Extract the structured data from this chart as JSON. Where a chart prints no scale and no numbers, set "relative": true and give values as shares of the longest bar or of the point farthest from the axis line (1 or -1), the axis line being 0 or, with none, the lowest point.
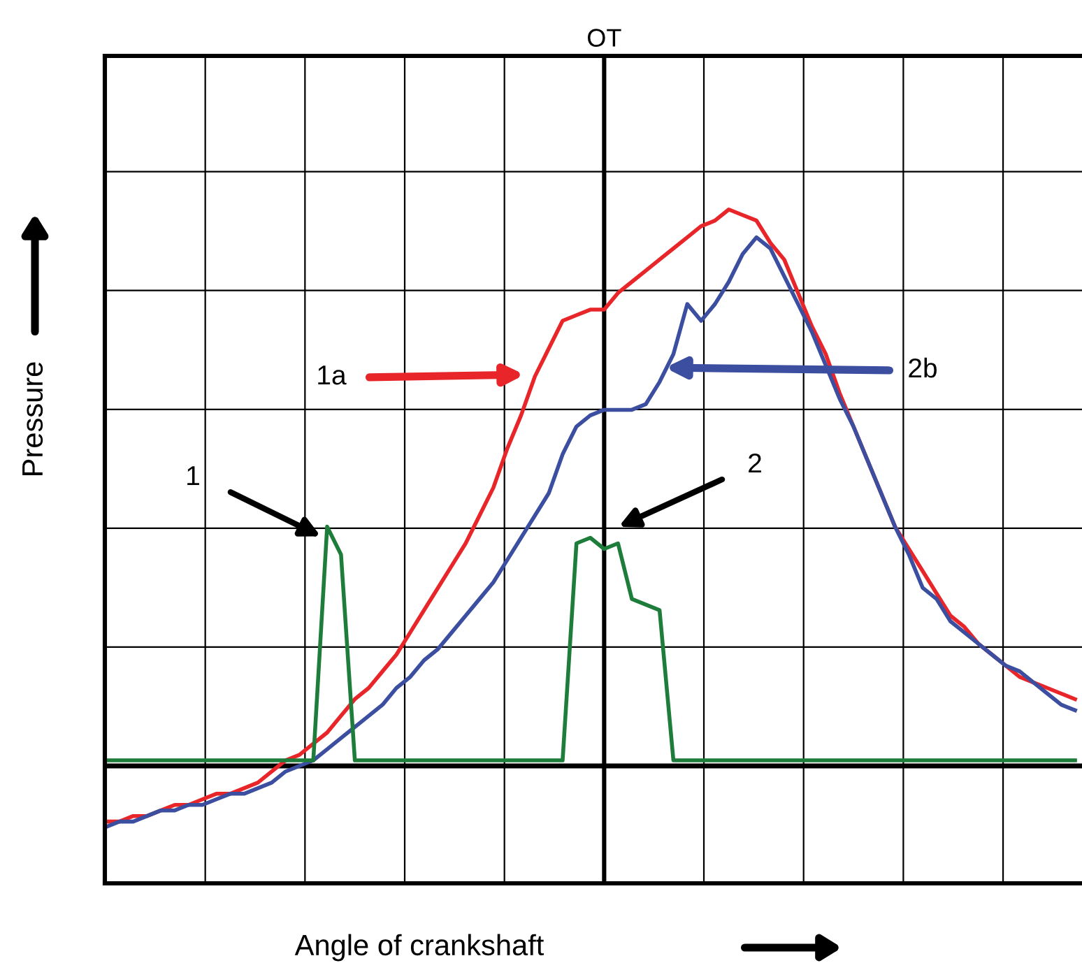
{
  "chart_data": {
    "type": "line",
    "xlabel": "Angle of crankshaft",
    "ylabel": "Pressure",
    "relative": true,
    "grid": true,
    "marker": "none",
    "line_style": "solid",
    "categories": [
      null,
      null,
      null,
      null,
      null,
      null,
      null,
      null,
      null,
      null,
      null,
      null,
      null,
      null,
      null,
      null,
      null,
      null,
      null,
      null,
      null,
      null,
      null,
      null,
      null,
      null,
      null,
      null,
      null,
      null,
      null,
      null,
      null,
      null,
      null,
      null,
      null,
      null,
      null,
      null,
      null,
      null,
      null,
      null,
      null,
      null,
      null,
      null,
      null,
      null,
      null,
      null,
      null,
      null,
      null,
      null,
      null,
      null,
      null,
      null,
      null,
      null,
      null,
      null,
      null,
      null,
      null,
      null,
      null,
      null,
      null
    ],
    "series": [
      {
        "color": "#e8262a",
        "values": [
          -0.1,
          -0.1,
          -0.09,
          -0.09,
          -0.08,
          -0.07,
          -0.07,
          -0.06,
          -0.05,
          -0.05,
          -0.04,
          -0.03,
          -0.01,
          0.01,
          0.02,
          0.04,
          0.06,
          0.09,
          0.12,
          0.14,
          0.17,
          0.2,
          0.24,
          0.28,
          0.32,
          0.36,
          0.4,
          0.45,
          0.5,
          0.57,
          0.63,
          0.7,
          0.75,
          0.8,
          0.81,
          0.82,
          0.82,
          0.85,
          0.87,
          0.89,
          0.91,
          0.93,
          0.95,
          0.97,
          0.98,
          1.0,
          0.99,
          0.98,
          0.94,
          0.91,
          0.85,
          0.79,
          0.74,
          0.67,
          0.61,
          0.55,
          0.49,
          0.43,
          0.39,
          0.35,
          0.31,
          0.27,
          0.25,
          0.22,
          0.2,
          0.18,
          0.16,
          0.15,
          0.14,
          0.13,
          0.12
        ]
      },
      {
        "color": "#3b4ea0",
        "values": [
          -0.11,
          -0.1,
          -0.1,
          -0.09,
          -0.08,
          -0.08,
          -0.07,
          -0.07,
          -0.06,
          -0.05,
          -0.05,
          -0.04,
          -0.03,
          -0.01,
          0.0,
          0.01,
          0.03,
          0.05,
          0.07,
          0.09,
          0.11,
          0.14,
          0.16,
          0.19,
          0.21,
          0.24,
          0.27,
          0.3,
          0.33,
          0.37,
          0.41,
          0.45,
          0.49,
          0.56,
          0.61,
          0.63,
          0.64,
          0.64,
          0.64,
          0.65,
          0.69,
          0.74,
          0.83,
          0.8,
          0.83,
          0.87,
          0.92,
          0.95,
          0.93,
          0.88,
          0.83,
          0.78,
          0.72,
          0.66,
          0.61,
          0.55,
          0.49,
          0.43,
          0.38,
          0.32,
          0.3,
          0.26,
          0.24,
          0.22,
          0.2,
          0.18,
          0.17,
          0.15,
          0.13,
          0.11,
          0.1
        ]
      },
      {
        "color": "#1e7d3a",
        "values": [
          0.01,
          0.01,
          0.01,
          0.01,
          0.01,
          0.01,
          0.01,
          0.01,
          0.01,
          0.01,
          0.01,
          0.01,
          0.01,
          0.01,
          0.01,
          0.01,
          0.43,
          0.38,
          0.01,
          0.01,
          0.01,
          0.01,
          0.01,
          0.01,
          0.01,
          0.01,
          0.01,
          0.01,
          0.01,
          0.01,
          0.01,
          0.01,
          0.01,
          0.01,
          0.4,
          0.41,
          0.39,
          0.4,
          0.3,
          0.29,
          0.28,
          0.01,
          0.01,
          0.01,
          0.01,
          0.01,
          0.01,
          0.01,
          0.01,
          0.01,
          0.01,
          0.01,
          0.01,
          0.01,
          0.01,
          0.01,
          0.01,
          0.01,
          0.01,
          0.01,
          0.01,
          0.01,
          0.01,
          0.01,
          0.01,
          0.01,
          0.01,
          0.01,
          0.01,
          0.01,
          0.01
        ]
      }
    ],
    "annotations": [
      "1a",
      "2b",
      "1",
      "2",
      "OT"
    ]
  }
}
